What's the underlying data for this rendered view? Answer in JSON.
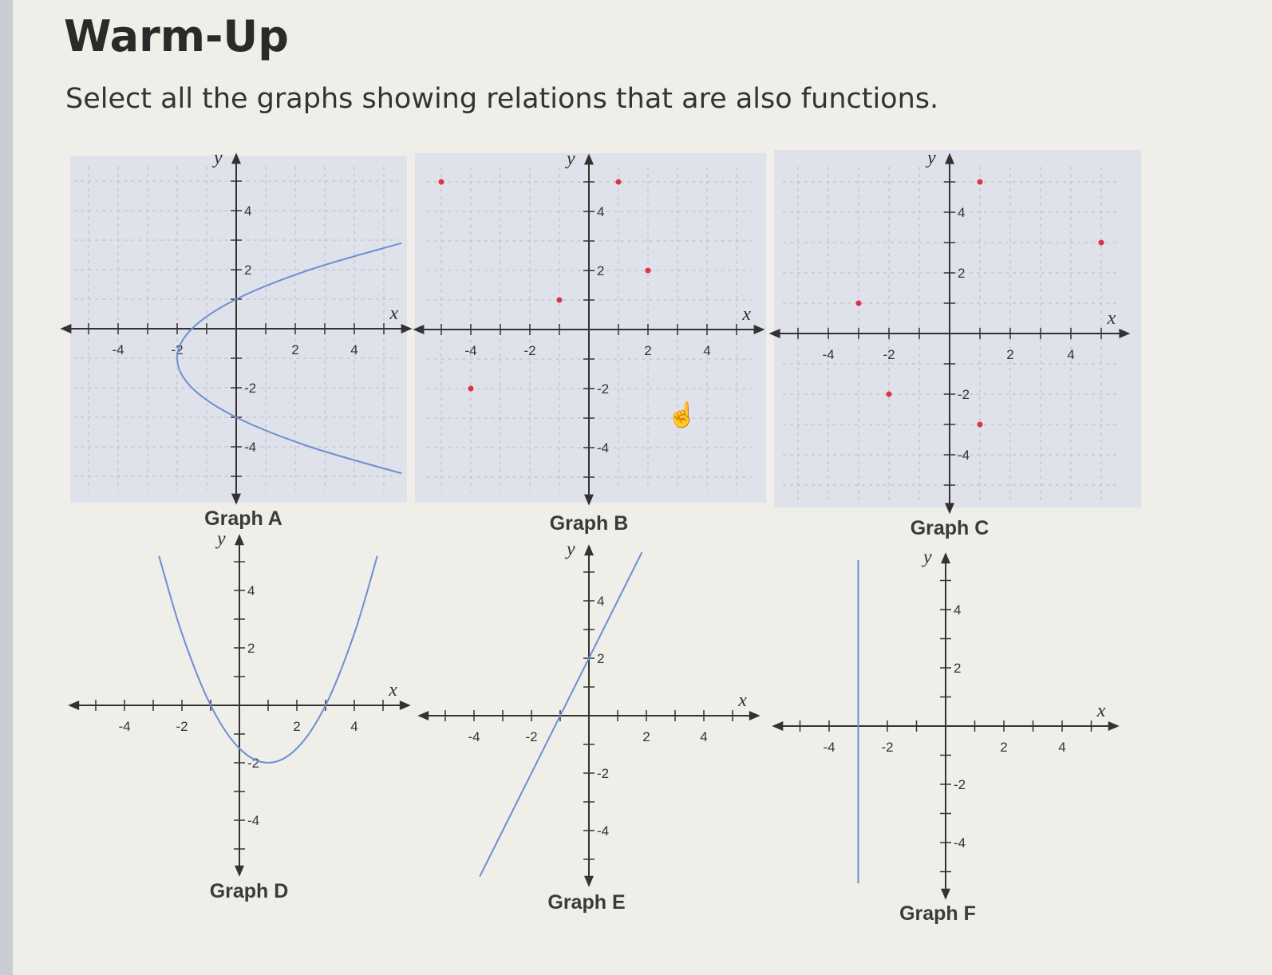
{
  "header": {
    "title": "Warm-Up",
    "prompt": "Select all the graphs showing relations that are also functions."
  },
  "colors": {
    "curve": "#6f8fd0",
    "point": "#d9344a",
    "panel": "#dfe2ea",
    "axis": "#333333",
    "grid": "#b9bcc4"
  },
  "chart_data": [
    {
      "title": "Graph A",
      "type": "line",
      "xlabel": "x",
      "ylabel": "y",
      "xticks": [
        "-4",
        "-2",
        "2",
        "4"
      ],
      "yticks": [
        "4",
        "2",
        "-2",
        "-4"
      ],
      "xlim": [
        -5.5,
        5.5
      ],
      "ylim": [
        -5.5,
        5.5
      ],
      "grid": true,
      "panel_shaded": true,
      "points": [
        [
          5.6,
          -4.9
        ],
        [
          2.5,
          -4
        ],
        [
          0,
          -3
        ],
        [
          -1.5,
          -2
        ],
        [
          -2,
          -1
        ],
        [
          -1.5,
          0
        ],
        [
          0,
          1
        ],
        [
          2.5,
          2
        ],
        [
          5.6,
          2.9
        ]
      ]
    },
    {
      "title": "Graph B",
      "type": "scatter",
      "xlabel": "x",
      "ylabel": "y",
      "xticks": [
        "-4",
        "-2",
        "2",
        "4"
      ],
      "yticks": [
        "4",
        "2",
        "-2",
        "-4"
      ],
      "xlim": [
        -5.5,
        5.5
      ],
      "ylim": [
        -5.5,
        5.5
      ],
      "grid": true,
      "panel_shaded": true,
      "points": [
        [
          -5,
          5
        ],
        [
          1,
          5
        ],
        [
          2,
          2
        ],
        [
          -1,
          1
        ],
        [
          -4,
          -2
        ]
      ]
    },
    {
      "title": "Graph C",
      "type": "scatter",
      "xlabel": "x",
      "ylabel": "y",
      "xticks": [
        "-4",
        "-2",
        "2",
        "4"
      ],
      "yticks": [
        "4",
        "2",
        "-2",
        "-4"
      ],
      "xlim": [
        -5.5,
        5.5
      ],
      "ylim": [
        -5.5,
        5.5
      ],
      "grid": true,
      "panel_shaded": true,
      "points": [
        [
          1,
          5
        ],
        [
          5,
          3
        ],
        [
          -3,
          1
        ],
        [
          -2,
          -2
        ],
        [
          1,
          -3
        ]
      ]
    },
    {
      "title": "Graph D",
      "type": "line",
      "xlabel": "x",
      "ylabel": "y",
      "xticks": [
        "-4",
        "-2",
        "2",
        "4"
      ],
      "yticks": [
        "4",
        "2",
        "-2",
        "-4"
      ],
      "xlim": [
        -5.5,
        5.5
      ],
      "ylim": [
        -5.5,
        5.5
      ],
      "grid": false,
      "panel_shaded": false,
      "points": [
        [
          -2.8,
          5.2
        ],
        [
          -2,
          2.5
        ],
        [
          -1,
          0
        ],
        [
          0,
          -1.5
        ],
        [
          1,
          -2
        ],
        [
          2,
          -1.5
        ],
        [
          3,
          0
        ],
        [
          4,
          2.5
        ],
        [
          4.8,
          5.2
        ]
      ]
    },
    {
      "title": "Graph E",
      "type": "line",
      "xlabel": "x",
      "ylabel": "y",
      "xticks": [
        "-4",
        "-2",
        "2",
        "4"
      ],
      "yticks": [
        "4",
        "2",
        "-2",
        "-4"
      ],
      "xlim": [
        -5.5,
        5.5
      ],
      "ylim": [
        -5.5,
        5.5
      ],
      "grid": false,
      "panel_shaded": false,
      "points": [
        [
          -3.8,
          -5.6
        ],
        [
          1.85,
          5.7
        ]
      ]
    },
    {
      "title": "Graph F",
      "type": "line",
      "xlabel": "x",
      "ylabel": "y",
      "xticks": [
        "-4",
        "-2",
        "2",
        "4"
      ],
      "yticks": [
        "4",
        "2",
        "-2",
        "-4"
      ],
      "xlim": [
        -5.5,
        5.5
      ],
      "ylim": [
        -5.5,
        5.5
      ],
      "grid": false,
      "panel_shaded": false,
      "points": [
        [
          -3,
          -5.4
        ],
        [
          -3,
          5.7
        ]
      ]
    }
  ]
}
